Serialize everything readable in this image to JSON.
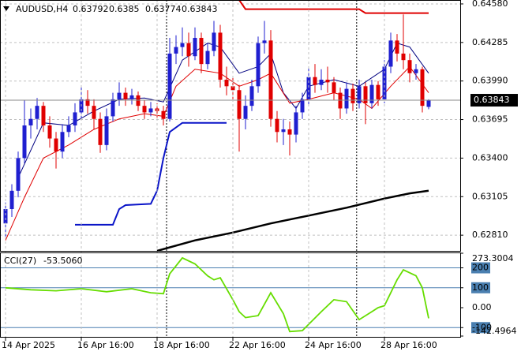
{
  "chart_data": [
    {
      "type": "candlestick",
      "title": "AUDUSD,H4",
      "up_color": "#1f1fd0",
      "down_color": "#e00000",
      "open": [
        0.629,
        0.6301,
        0.6315,
        0.634,
        0.6365,
        0.637,
        0.638,
        0.6365,
        0.6355,
        0.6345,
        0.636,
        0.6365,
        0.6375,
        0.6385,
        0.638,
        0.637,
        0.635,
        0.6372,
        0.6385,
        0.639,
        0.6385,
        0.6388,
        0.638,
        0.6375,
        0.6378,
        0.6376,
        0.637,
        0.642,
        0.6425,
        0.6428,
        0.6418,
        0.6432,
        0.6412,
        0.6422,
        0.6436,
        0.64,
        0.6395,
        0.6392,
        0.637,
        0.638,
        0.6395,
        0.6428,
        0.643,
        0.637,
        0.636,
        0.6362,
        0.6358,
        0.6375,
        0.6385,
        0.6402,
        0.6396,
        0.64,
        0.6398,
        0.639,
        0.6378,
        0.6393,
        0.6382,
        0.6395,
        0.6382,
        0.6396,
        0.6385,
        0.641,
        0.643,
        0.642,
        0.6415,
        0.6405,
        0.6408,
        0.63792
      ],
      "high": [
        0.6306,
        0.632,
        0.6345,
        0.6384,
        0.6378,
        0.6386,
        0.6383,
        0.6372,
        0.636,
        0.6366,
        0.6372,
        0.6382,
        0.6395,
        0.6392,
        0.6385,
        0.6375,
        0.6378,
        0.639,
        0.6398,
        0.6394,
        0.6393,
        0.6391,
        0.6384,
        0.6383,
        0.6382,
        0.638,
        0.6432,
        0.6434,
        0.644,
        0.6436,
        0.644,
        0.6436,
        0.6428,
        0.6445,
        0.6442,
        0.641,
        0.6402,
        0.6396,
        0.6388,
        0.64,
        0.6433,
        0.6445,
        0.6438,
        0.6376,
        0.637,
        0.6368,
        0.638,
        0.639,
        0.641,
        0.6412,
        0.6408,
        0.641,
        0.6402,
        0.6394,
        0.6398,
        0.6397,
        0.64,
        0.6398,
        0.64,
        0.6399,
        0.6415,
        0.6436,
        0.6435,
        0.645,
        0.642,
        0.6412,
        0.641,
        0.6385
      ],
      "low": [
        0.628,
        0.6295,
        0.631,
        0.6336,
        0.6355,
        0.6362,
        0.636,
        0.6348,
        0.6332,
        0.634,
        0.6356,
        0.636,
        0.637,
        0.6374,
        0.6362,
        0.6344,
        0.6346,
        0.6368,
        0.638,
        0.638,
        0.6381,
        0.6376,
        0.637,
        0.6372,
        0.6371,
        0.6365,
        0.6368,
        0.6412,
        0.6418,
        0.641,
        0.6415,
        0.6405,
        0.6408,
        0.6418,
        0.6394,
        0.6388,
        0.6385,
        0.6345,
        0.6362,
        0.6376,
        0.639,
        0.642,
        0.6364,
        0.6352,
        0.635,
        0.6342,
        0.6352,
        0.637,
        0.638,
        0.639,
        0.6392,
        0.639,
        0.6384,
        0.637,
        0.6374,
        0.6376,
        0.6378,
        0.6366,
        0.6378,
        0.638,
        0.6382,
        0.6405,
        0.6414,
        0.6408,
        0.6398,
        0.64,
        0.6375,
        0.63774
      ],
      "close": [
        0.6301,
        0.6315,
        0.634,
        0.6365,
        0.637,
        0.638,
        0.6365,
        0.6355,
        0.6345,
        0.636,
        0.6365,
        0.6375,
        0.6385,
        0.638,
        0.637,
        0.635,
        0.6372,
        0.6385,
        0.639,
        0.6385,
        0.6388,
        0.638,
        0.6375,
        0.6378,
        0.6376,
        0.637,
        0.642,
        0.6425,
        0.6428,
        0.6418,
        0.6432,
        0.6412,
        0.6422,
        0.6436,
        0.64,
        0.6395,
        0.6392,
        0.637,
        0.638,
        0.6395,
        0.6428,
        0.643,
        0.637,
        0.636,
        0.6362,
        0.6358,
        0.6375,
        0.6385,
        0.6402,
        0.6396,
        0.64,
        0.6398,
        0.639,
        0.6378,
        0.6393,
        0.6382,
        0.6395,
        0.6382,
        0.6396,
        0.6385,
        0.641,
        0.643,
        0.642,
        0.6415,
        0.6405,
        0.6408,
        0.638,
        0.63843
      ],
      "overlays": [
        {
          "color": "#000080",
          "width": 1,
          "x": [
            2,
            6,
            10,
            14,
            18,
            22,
            25,
            28,
            32,
            34,
            37,
            40,
            42,
            44,
            46,
            48,
            52,
            56,
            60,
            62,
            64,
            67
          ],
          "values": [
            0.6325,
            0.6367,
            0.6365,
            0.6376,
            0.6385,
            0.6386,
            0.6383,
            0.6415,
            0.6428,
            0.6425,
            0.6405,
            0.641,
            0.642,
            0.639,
            0.6378,
            0.6395,
            0.64,
            0.6395,
            0.6408,
            0.6428,
            0.6425,
            0.6405
          ]
        },
        {
          "color": "#e00000",
          "width": 1,
          "x": [
            0,
            3,
            6,
            10,
            14,
            18,
            22,
            25,
            27,
            30,
            34,
            37,
            40,
            42,
            45,
            48,
            52,
            56,
            58,
            61,
            64,
            67
          ],
          "values": [
            0.6277,
            0.631,
            0.634,
            0.635,
            0.6362,
            0.637,
            0.6374,
            0.6372,
            0.6395,
            0.6408,
            0.6405,
            0.6395,
            0.64,
            0.6405,
            0.6382,
            0.6385,
            0.639,
            0.6385,
            0.6378,
            0.6395,
            0.641,
            0.639
          ]
        },
        {
          "color": "#000000",
          "width": 2.5,
          "x": [
            24,
            30,
            36,
            42,
            48,
            54,
            60,
            64,
            67
          ],
          "values": [
            0.6269,
            0.6277,
            0.6283,
            0.629,
            0.6296,
            0.6302,
            0.6309,
            0.6313,
            0.6315
          ]
        },
        {
          "color": "#0a14c8",
          "width": 2,
          "x": [
            11,
            17,
            18,
            19,
            23,
            24,
            25,
            26,
            28,
            35
          ],
          "values": [
            0.6289,
            0.6289,
            0.6301,
            0.6304,
            0.6305,
            0.6315,
            0.634,
            0.636,
            0.6367,
            0.6367
          ]
        },
        {
          "color": "#e00000",
          "width": 2,
          "x": [
            37,
            38,
            56,
            57,
            67
          ],
          "values": [
            0.6461,
            0.6454,
            0.6454,
            0.6451,
            0.6451
          ]
        }
      ],
      "separators": [
        25.5,
        55.6
      ],
      "ylim": [
        0.6269,
        0.6461
      ],
      "yticks": [
        {
          "value": 0.6458,
          "label": "0.64580"
        },
        0.64285,
        {
          "value": 0.6399,
          "label": "0.63990"
        },
        0.63695,
        {
          "value": 0.634,
          "label": "0.63400"
        },
        0.63105,
        {
          "value": 0.6281,
          "label": "0.62810"
        }
      ],
      "grid": true
    },
    {
      "type": "line",
      "title": "CCI(27)",
      "last_label": "-53.5060",
      "series": [
        {
          "color": "#66dd00",
          "x": [
            0,
            4,
            8,
            12,
            16,
            20,
            23,
            25,
            26,
            28,
            30,
            32,
            33,
            34,
            36,
            37,
            38,
            40,
            42,
            44,
            45,
            47,
            50,
            52,
            54,
            56,
            58,
            59,
            60,
            62,
            63,
            65,
            66,
            67
          ],
          "values": [
            100,
            90,
            85,
            95,
            80,
            95,
            75,
            70,
            170,
            250,
            220,
            160,
            140,
            150,
            40,
            -20,
            -50,
            -40,
            75,
            -30,
            -120,
            -115,
            -20,
            40,
            30,
            -60,
            -20,
            0,
            10,
            140,
            190,
            160,
            100,
            -53.506
          ]
        }
      ],
      "levels": [
        200,
        100,
        -100
      ],
      "level_color": "#4a7fb0",
      "ylim": [
        -142.4964,
        273.3004
      ],
      "yticks": [
        273.3004,
        200,
        100,
        {
          "value": 0,
          "label": "0.00"
        },
        -100,
        -142.4964
      ],
      "xticks": [
        {
          "value": 0,
          "label": "14 Apr 2025"
        },
        {
          "value": 12,
          "label": "16 Apr 16:00"
        },
        {
          "value": 24,
          "label": "18 Apr 16:00"
        },
        {
          "value": 36,
          "label": "22 Apr 16:00"
        },
        {
          "value": 48,
          "label": "24 Apr 16:00"
        },
        {
          "value": 60,
          "label": "28 Apr 16:00"
        }
      ]
    }
  ]
}
